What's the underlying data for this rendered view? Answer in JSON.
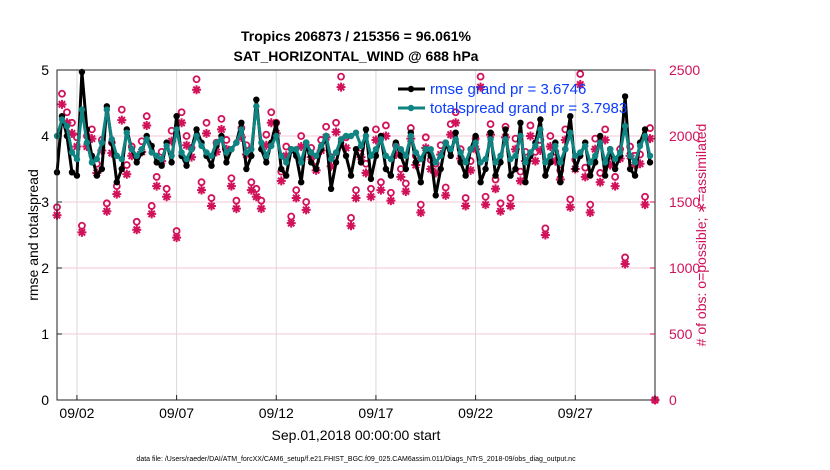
{
  "chart_data": {
    "type": "line",
    "title": "Tropics 206873 / 215356 = 96.061%",
    "subtitle": "SAT_HORIZONTAL_WIND @ 688 hPa",
    "xlabel": "Sep.01,2018 00:00:00 start",
    "ylabel": "rmse and totalspread",
    "ylabel_right": "# of obs: o=possible; ∗=assimilated",
    "footer": "data file: /Users/raeder/DAI/ATM_forcXX/CAM6_setup/f.e21.FHIST_BGC.f09_025.CAM6assim.011/Diags_NTrS_2018-09/obs_diag_output.nc",
    "x_unit": "days since Sep.01,2018 00:00",
    "x_step_days": 0.25,
    "xlim": [
      0,
      30
    ],
    "ylim": [
      0,
      5
    ],
    "ylim_right": [
      0,
      2500
    ],
    "x_ticks": [
      {
        "value": 1,
        "label": "09/02"
      },
      {
        "value": 6,
        "label": "09/07"
      },
      {
        "value": 11,
        "label": "09/12"
      },
      {
        "value": 16,
        "label": "09/17"
      },
      {
        "value": 21,
        "label": "09/22"
      },
      {
        "value": 26,
        "label": "09/27"
      }
    ],
    "y_ticks": [
      "0",
      "1",
      "2",
      "3",
      "4",
      "5"
    ],
    "y_ticks_right": [
      "0",
      "500",
      "1000",
      "1500",
      "2000",
      "2500"
    ],
    "legend_position": "top-right",
    "colors": {
      "rmse": "#000000",
      "spread": "#0f8482",
      "obs": "#d1125a",
      "legend_text": "#0a3cff"
    },
    "series": [
      {
        "name": "rmse grand pr = 3.6746",
        "axis": "left",
        "values": [
          3.45,
          4.3,
          4.0,
          3.45,
          3.4,
          4.97,
          4.1,
          3.7,
          3.4,
          3.5,
          4.45,
          3.9,
          3.3,
          3.5,
          4.1,
          3.8,
          3.6,
          3.75,
          4.0,
          3.85,
          3.6,
          3.55,
          3.9,
          3.6,
          4.3,
          3.7,
          3.55,
          3.8,
          4.1,
          3.9,
          3.7,
          3.55,
          3.85,
          4.0,
          3.6,
          3.8,
          3.9,
          4.2,
          3.5,
          3.7,
          4.55,
          3.8,
          3.6,
          3.9,
          4.2,
          3.5,
          3.4,
          3.8,
          3.7,
          3.3,
          3.9,
          3.6,
          3.5,
          3.8,
          4.0,
          3.2,
          3.6,
          3.9,
          3.7,
          3.4,
          3.8,
          3.6,
          4.1,
          3.35,
          3.7,
          4.0,
          3.5,
          3.4,
          3.9,
          3.7,
          3.5,
          4.05,
          3.6,
          3.3,
          3.8,
          3.7,
          3.1,
          3.5,
          3.9,
          3.7,
          4.05,
          3.6,
          3.4,
          3.8,
          4.0,
          3.3,
          3.5,
          4.05,
          3.4,
          3.6,
          4.1,
          3.4,
          3.5,
          4.2,
          3.3,
          3.7,
          3.9,
          4.25,
          3.4,
          3.6,
          3.9,
          3.3,
          3.8,
          4.3,
          3.5,
          3.7,
          3.9,
          3.4,
          3.6,
          4.0,
          3.4,
          3.8,
          3.5,
          3.7,
          4.6,
          3.5,
          3.4,
          3.9,
          4.1,
          3.6
        ]
      },
      {
        "name": "totalspread grand pr = 3.7983",
        "axis": "left",
        "values": [
          4.0,
          4.25,
          4.15,
          3.75,
          3.65,
          4.4,
          3.9,
          3.6,
          3.65,
          3.9,
          4.4,
          3.95,
          3.7,
          3.65,
          4.05,
          3.8,
          3.7,
          3.8,
          3.95,
          3.75,
          3.7,
          3.65,
          3.85,
          3.7,
          4.1,
          3.75,
          3.65,
          3.8,
          4.0,
          3.85,
          3.75,
          3.7,
          3.9,
          3.95,
          3.75,
          3.8,
          3.9,
          4.1,
          3.75,
          3.8,
          4.45,
          3.9,
          3.7,
          3.85,
          4.0,
          3.7,
          3.6,
          3.8,
          3.8,
          3.6,
          3.9,
          3.75,
          3.7,
          3.85,
          4.0,
          3.65,
          3.75,
          3.95,
          4.0,
          4.0,
          4.05,
          3.85,
          4.0,
          3.7,
          3.8,
          3.95,
          3.7,
          3.65,
          3.85,
          3.8,
          3.7,
          4.0,
          3.75,
          3.65,
          3.8,
          3.8,
          3.6,
          3.7,
          3.9,
          3.8,
          3.95,
          3.75,
          3.6,
          3.8,
          3.9,
          3.6,
          3.65,
          3.95,
          3.6,
          3.7,
          3.95,
          3.65,
          3.7,
          4.0,
          3.6,
          3.75,
          3.85,
          4.1,
          3.6,
          3.7,
          3.85,
          3.6,
          3.8,
          4.05,
          3.7,
          3.75,
          3.85,
          3.6,
          3.7,
          3.9,
          3.6,
          3.8,
          3.65,
          3.75,
          4.15,
          3.7,
          3.6,
          3.85,
          4.0,
          3.7
        ]
      },
      {
        "name": "possible",
        "axis": "right",
        "marker": "circle",
        "values": [
          1460,
          2320,
          2180,
          2100,
          1990,
          1320,
          2000,
          2050,
          1790,
          1970,
          1490,
          1950,
          1620,
          2200,
          1780,
          1920,
          1350,
          1960,
          2150,
          1470,
          1690,
          1880,
          1600,
          2040,
          1280,
          2180,
          2000,
          1910,
          2430,
          1650,
          2100,
          1530,
          1950,
          2130,
          1970,
          1680,
          1510,
          2060,
          1930,
          1650,
          1600,
          1510,
          2010,
          2180,
          2100,
          1730,
          1920,
          1390,
          1590,
          2000,
          1500,
          1910,
          1810,
          1970,
          2070,
          1840,
          2100,
          2450,
          1990,
          1380,
          1590,
          1910,
          1790,
          1600,
          2050,
          1650,
          2080,
          1570,
          1930,
          1750,
          1640,
          2060,
          1850,
          1480,
          1990,
          1820,
          1790,
          1930,
          1610,
          2090,
          2180,
          1900,
          1530,
          1810,
          1980,
          2450,
          1540,
          2090,
          1670,
          1490,
          2070,
          1530,
          1980,
          1730,
          1880,
          2080,
          1880,
          1970,
          1300,
          2000,
          1880,
          1740,
          2050,
          1520,
          1820,
          2470,
          1760,
          1480,
          1980,
          1720,
          2050,
          1850,
          1690,
          1900,
          1080,
          1920,
          1850,
          1860,
          1540,
          2060,
          0
        ]
      },
      {
        "name": "assimilated",
        "axis": "right",
        "marker": "asterisk",
        "values": [
          1400,
          2240,
          2100,
          2020,
          1920,
          1270,
          1920,
          1980,
          1720,
          1890,
          1430,
          1870,
          1560,
          2120,
          1710,
          1850,
          1290,
          1880,
          2080,
          1410,
          1620,
          1810,
          1540,
          1960,
          1230,
          2100,
          1930,
          1840,
          2350,
          1590,
          2020,
          1470,
          1880,
          2050,
          1900,
          1620,
          1450,
          1990,
          1860,
          1590,
          1540,
          1450,
          1930,
          2100,
          2020,
          1660,
          1850,
          1340,
          1530,
          1920,
          1440,
          1840,
          1740,
          1890,
          1990,
          1770,
          2030,
          2370,
          1910,
          1320,
          1530,
          1840,
          1720,
          1540,
          1970,
          1590,
          2000,
          1510,
          1860,
          1690,
          1580,
          1980,
          1780,
          1420,
          1910,
          1750,
          1720,
          1860,
          1550,
          2010,
          2100,
          1830,
          1470,
          1740,
          1900,
          2370,
          1480,
          2010,
          1600,
          1430,
          1990,
          1470,
          1900,
          1660,
          1810,
          2000,
          1810,
          1890,
          1250,
          1920,
          1810,
          1670,
          1970,
          1460,
          1750,
          2390,
          1690,
          1420,
          1900,
          1650,
          1970,
          1780,
          1620,
          1830,
          1030,
          1850,
          1780,
          1790,
          1480,
          1980,
          0
        ]
      }
    ]
  }
}
